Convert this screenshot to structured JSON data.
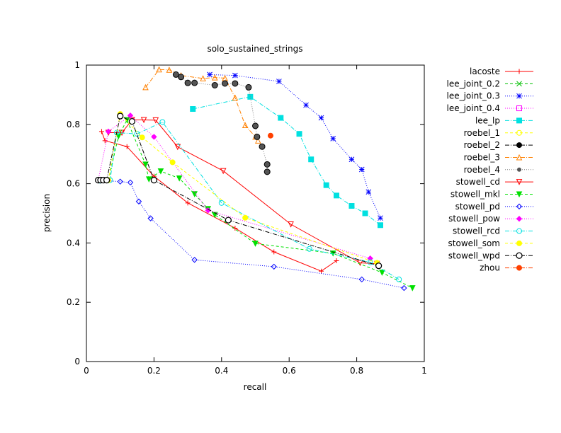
{
  "chart_data": {
    "type": "line",
    "title": "solo_sustained_strings",
    "xlabel": "recall",
    "ylabel": "precision",
    "xlim": [
      0,
      1
    ],
    "ylim": [
      0,
      1
    ],
    "xticks": [
      "0",
      "0.2",
      "0.4",
      "0.6",
      "0.8",
      "1"
    ],
    "yticks": [
      "0",
      "0.2",
      "0.4",
      "0.6",
      "0.8",
      "1"
    ],
    "grid": false,
    "legend_position": "right-outside",
    "series": [
      {
        "name": "lacoste",
        "color": "#ff0000",
        "marker": "plus",
        "dash": "solid",
        "points": [
          [
            0.045,
            0.776
          ],
          [
            0.055,
            0.745
          ],
          [
            0.12,
            0.725
          ],
          [
            0.2,
            0.625
          ],
          [
            0.3,
            0.535
          ],
          [
            0.44,
            0.45
          ],
          [
            0.555,
            0.37
          ],
          [
            0.695,
            0.305
          ],
          [
            0.74,
            0.34
          ]
        ]
      },
      {
        "name": "lee_joint_0.2",
        "color": "#00c000",
        "marker": "x",
        "dash": "dash",
        "points": []
      },
      {
        "name": "lee_joint_0.3",
        "color": "#0000ff",
        "marker": "star",
        "dash": "dot",
        "points": [
          [
            0.365,
            0.968
          ],
          [
            0.44,
            0.965
          ],
          [
            0.57,
            0.945
          ],
          [
            0.65,
            0.865
          ],
          [
            0.695,
            0.822
          ],
          [
            0.73,
            0.752
          ],
          [
            0.785,
            0.682
          ],
          [
            0.815,
            0.648
          ],
          [
            0.835,
            0.572
          ],
          [
            0.87,
            0.484
          ]
        ]
      },
      {
        "name": "lee_joint_0.4",
        "color": "#ff00ff",
        "marker": "box",
        "dash": "dot",
        "points": []
      },
      {
        "name": "lee_lp",
        "color": "#00e0e0",
        "marker": "fbox",
        "dash": "dashdot",
        "points": [
          [
            0.315,
            0.852
          ],
          [
            0.485,
            0.893
          ],
          [
            0.575,
            0.822
          ],
          [
            0.63,
            0.768
          ],
          [
            0.665,
            0.682
          ],
          [
            0.71,
            0.595
          ],
          [
            0.74,
            0.56
          ],
          [
            0.785,
            0.525
          ],
          [
            0.825,
            0.5
          ],
          [
            0.87,
            0.46
          ]
        ]
      },
      {
        "name": "roebel_1",
        "color": "#ffff00",
        "marker": "circle",
        "dash": "dash",
        "points": []
      },
      {
        "name": "roebel_2",
        "color": "#000000",
        "marker": "fcircle",
        "dash": "dashdot",
        "points": []
      },
      {
        "name": "roebel_3",
        "color": "#ff8000",
        "marker": "triangle",
        "dash": "dashdot",
        "points": [
          [
            0.175,
            0.925
          ],
          [
            0.215,
            0.985
          ],
          [
            0.245,
            0.984
          ],
          [
            0.28,
            0.965
          ],
          [
            0.345,
            0.955
          ],
          [
            0.38,
            0.958
          ],
          [
            0.41,
            0.956
          ],
          [
            0.44,
            0.89
          ],
          [
            0.47,
            0.797
          ],
          [
            0.5,
            0.758
          ],
          [
            0.508,
            0.745
          ]
        ]
      },
      {
        "name": "roebel_4",
        "color": "#808080",
        "marker": "ftriangle",
        "dash": "dot",
        "points": [
          [
            0.265,
            0.968
          ],
          [
            0.28,
            0.96
          ],
          [
            0.3,
            0.94
          ],
          [
            0.32,
            0.94
          ],
          [
            0.38,
            0.932
          ],
          [
            0.41,
            0.938
          ],
          [
            0.44,
            0.938
          ],
          [
            0.48,
            0.925
          ],
          [
            0.5,
            0.795
          ],
          [
            0.505,
            0.758
          ],
          [
            0.52,
            0.725
          ],
          [
            0.535,
            0.665
          ],
          [
            0.535,
            0.64
          ]
        ]
      },
      {
        "name": "stowell_cd",
        "color": "#ff0000",
        "marker": "invtriangle",
        "dash": "solid",
        "points": [
          [
            0.065,
            0.772
          ],
          [
            0.105,
            0.772
          ],
          [
            0.135,
            0.815
          ],
          [
            0.17,
            0.815
          ],
          [
            0.205,
            0.814
          ],
          [
            0.27,
            0.724
          ],
          [
            0.405,
            0.643
          ],
          [
            0.605,
            0.463
          ],
          [
            0.81,
            0.333
          ],
          [
            0.86,
            0.33
          ]
        ]
      },
      {
        "name": "stowell_mkl",
        "color": "#00e000",
        "marker": "finvtriangle",
        "dash": "dash",
        "points": [
          [
            0.065,
            0.612
          ],
          [
            0.095,
            0.76
          ],
          [
            0.12,
            0.815
          ],
          [
            0.175,
            0.665
          ],
          [
            0.185,
            0.615
          ],
          [
            0.22,
            0.642
          ],
          [
            0.275,
            0.618
          ],
          [
            0.32,
            0.565
          ],
          [
            0.36,
            0.515
          ],
          [
            0.38,
            0.495
          ],
          [
            0.5,
            0.398
          ],
          [
            0.73,
            0.365
          ],
          [
            0.875,
            0.3
          ],
          [
            0.965,
            0.248
          ]
        ]
      },
      {
        "name": "stowell_pd",
        "color": "#0000ff",
        "marker": "diamond",
        "dash": "dot",
        "points": [
          [
            0.035,
            0.612
          ],
          [
            0.1,
            0.607
          ],
          [
            0.13,
            0.604
          ],
          [
            0.155,
            0.54
          ],
          [
            0.19,
            0.483
          ],
          [
            0.32,
            0.343
          ],
          [
            0.555,
            0.32
          ],
          [
            0.815,
            0.277
          ],
          [
            0.94,
            0.248
          ]
        ]
      },
      {
        "name": "stowell_pow",
        "color": "#ff00ff",
        "marker": "fdiamond",
        "dash": "dot",
        "points": [
          [
            0.035,
            0.612
          ],
          [
            0.065,
            0.776
          ],
          [
            0.13,
            0.83
          ],
          [
            0.2,
            0.758
          ],
          [
            0.36,
            0.51
          ],
          [
            0.84,
            0.348
          ]
        ]
      },
      {
        "name": "stowell_rcd",
        "color": "#00e0e0",
        "marker": "circle",
        "dash": "dashdot",
        "points": [
          [
            0.04,
            0.61
          ],
          [
            0.07,
            0.612
          ],
          [
            0.09,
            0.772
          ],
          [
            0.15,
            0.768
          ],
          [
            0.225,
            0.808
          ],
          [
            0.4,
            0.535
          ],
          [
            0.66,
            0.38
          ],
          [
            0.84,
            0.335
          ],
          [
            0.925,
            0.277
          ]
        ]
      },
      {
        "name": "stowell_som",
        "color": "#ffff00",
        "marker": "fcircle",
        "dash": "dash",
        "points": [
          [
            0.035,
            0.612
          ],
          [
            0.065,
            0.612
          ],
          [
            0.1,
            0.835
          ],
          [
            0.165,
            0.756
          ],
          [
            0.255,
            0.672
          ],
          [
            0.47,
            0.485
          ],
          [
            0.86,
            0.333
          ]
        ]
      },
      {
        "name": "stowell_wpd",
        "color": "#000000",
        "marker": "circle",
        "dash": "dashdot",
        "points": [
          [
            0.035,
            0.612
          ],
          [
            0.042,
            0.612
          ],
          [
            0.05,
            0.612
          ],
          [
            0.06,
            0.612
          ],
          [
            0.1,
            0.828
          ],
          [
            0.135,
            0.81
          ],
          [
            0.2,
            0.612
          ],
          [
            0.42,
            0.477
          ],
          [
            0.865,
            0.323
          ]
        ]
      },
      {
        "name": "zhou",
        "color": "#ff4000",
        "marker": "fcircle",
        "dash": "dashdot",
        "points": [
          [
            0.545,
            0.762
          ]
        ]
      }
    ]
  }
}
